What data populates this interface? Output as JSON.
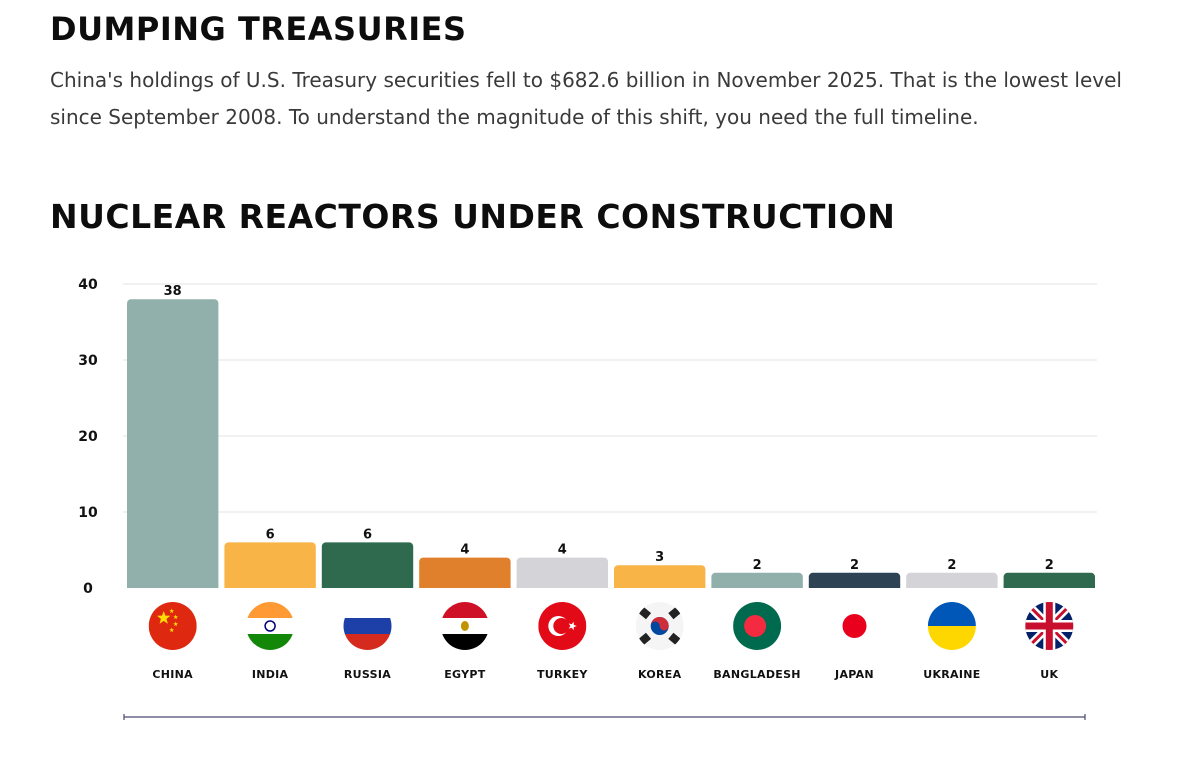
{
  "header": {
    "section_title": "DUMPING TREASURIES",
    "intro": "China's holdings of U.S. Treasury securities fell to $682.6 billion in November 2025. That is the lowest level since September 2008. To understand the magnitude of this shift, you need the full timeline."
  },
  "chart_data": {
    "type": "bar",
    "title": "NUCLEAR REACTORS UNDER CONSTRUCTION",
    "xlabel": "",
    "ylabel": "",
    "ylim": [
      0,
      40
    ],
    "yticks": [
      0,
      10,
      20,
      30,
      40
    ],
    "grid": true,
    "categories": [
      "CHINA",
      "INDIA",
      "RUSSIA",
      "EGYPT",
      "TURKEY",
      "KOREA",
      "BANGLADESH",
      "JAPAN",
      "UKRAINE",
      "UK"
    ],
    "values": [
      38,
      6,
      6,
      4,
      4,
      3,
      2,
      2,
      2,
      2
    ],
    "bar_colors": [
      "#92b0ab",
      "#f9b447",
      "#2f6a4f",
      "#e1802c",
      "#d4d4d8",
      "#f9b447",
      "#92b0ab",
      "#2e4353",
      "#d4d4d8",
      "#2f6a4f"
    ],
    "flag_icons": [
      "china-flag-icon",
      "india-flag-icon",
      "russia-flag-icon",
      "egypt-flag-icon",
      "turkey-flag-icon",
      "south-korea-flag-icon",
      "bangladesh-flag-icon",
      "japan-flag-icon",
      "ukraine-flag-icon",
      "uk-flag-icon"
    ]
  },
  "colors": {
    "grid": "#e3e3e3",
    "axis": "#333333",
    "bottom_rule": "#4a4a72"
  }
}
